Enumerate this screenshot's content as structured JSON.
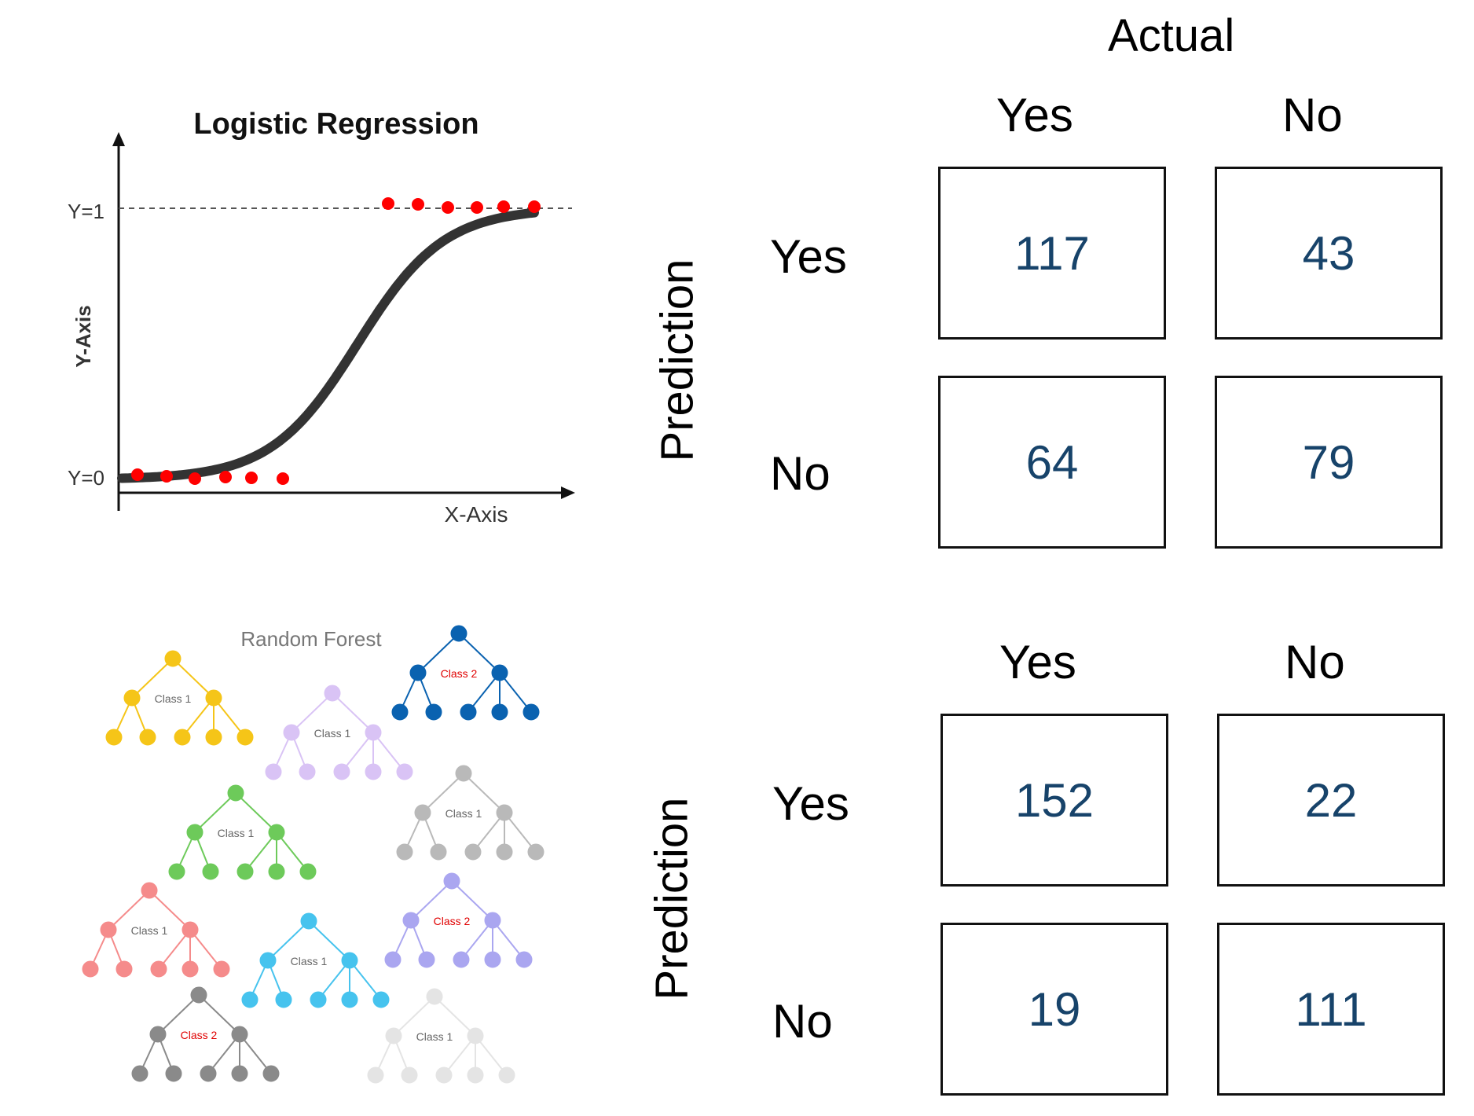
{
  "logistic_regression": {
    "title": "Logistic Regression",
    "y_axis_label": "Y-Axis",
    "x_axis_label": "X-Axis",
    "y1_label": "Y=1",
    "y0_label": "Y=0",
    "point_color": "#ff0000",
    "curve_color": "#333333"
  },
  "random_forest": {
    "title": "Random Forest",
    "trees": [
      {
        "label": "Class 1",
        "color": "#f5c518",
        "label_color": "#666666"
      },
      {
        "label": "Class 1",
        "color": "#d9c3f5",
        "label_color": "#666666"
      },
      {
        "label": "Class 2",
        "color": "#0a62b0",
        "label_color": "#e00000"
      },
      {
        "label": "Class 1",
        "color": "#6dca5a",
        "label_color": "#666666"
      },
      {
        "label": "Class 1",
        "color": "#b9b9b9",
        "label_color": "#666666"
      },
      {
        "label": "Class 1",
        "color": "#f58b8b",
        "label_color": "#666666"
      },
      {
        "label": "Class 1",
        "color": "#46c3ee",
        "label_color": "#666666"
      },
      {
        "label": "Class 2",
        "color": "#aaa6f0",
        "label_color": "#e00000"
      },
      {
        "label": "Class 2",
        "color": "#8a8a8a",
        "label_color": "#e00000"
      },
      {
        "label": "Class 1",
        "color": "#e4e4e4",
        "label_color": "#666666"
      }
    ]
  },
  "matrix_top": {
    "actual_label": "Actual",
    "col_yes": "Yes",
    "col_no": "No",
    "row_yes": "Yes",
    "row_no": "No",
    "prediction_label": "Prediction",
    "cells": {
      "yes_yes": "117",
      "yes_no": "43",
      "no_yes": "64",
      "no_no": "79"
    }
  },
  "matrix_bottom": {
    "col_yes": "Yes",
    "col_no": "No",
    "row_yes": "Yes",
    "row_no": "No",
    "prediction_label": "Prediction",
    "cells": {
      "yes_yes": "152",
      "yes_no": "22",
      "no_yes": "19",
      "no_no": "111"
    }
  },
  "colors": {
    "matrix_value": "#17436a"
  }
}
